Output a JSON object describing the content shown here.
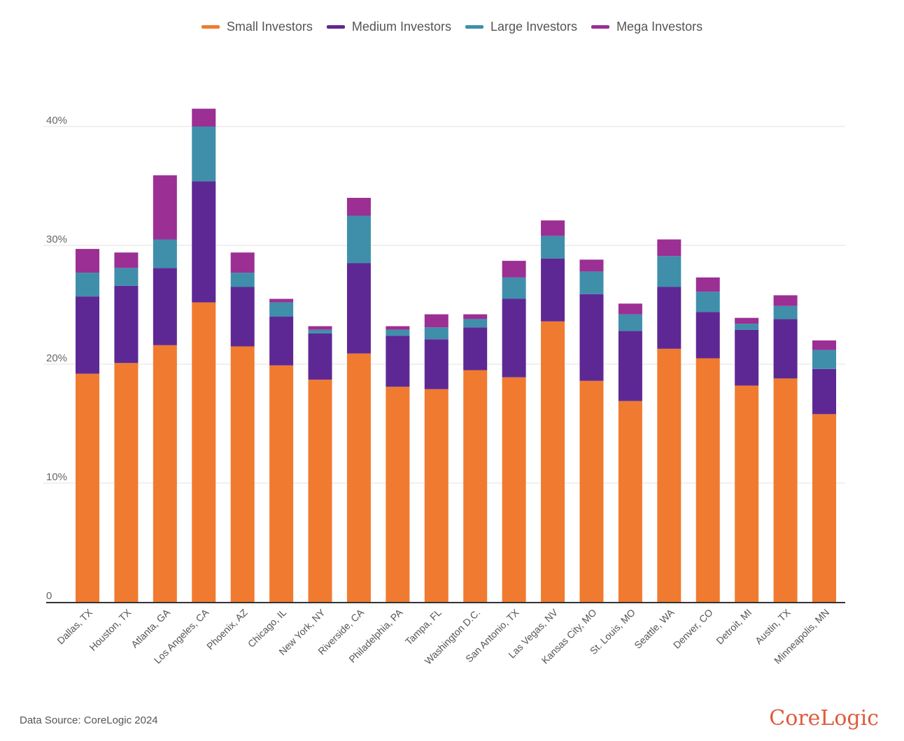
{
  "chart_data": {
    "type": "bar",
    "stacked": true,
    "title": "",
    "xlabel": "",
    "ylabel": "",
    "ylim": [
      0,
      40
    ],
    "yticks": [
      0,
      10,
      20,
      30,
      40
    ],
    "ytick_labels": [
      "0",
      "10%",
      "20%",
      "30%",
      "40%"
    ],
    "grid": true,
    "legend_position": "top-center",
    "categories": [
      "Dallas, TX",
      "Houston, TX",
      "Atlanta, GA",
      "Los Angeles, CA",
      "Phoenix, AZ",
      "Chicago, IL",
      "New York, NY",
      "Riverside, CA",
      "Philadelphia, PA",
      "Tampa, FL",
      "Washington D.C.",
      "San Antonio, TX",
      "Las Vegas, NV",
      "Kansas City, MO",
      "St. Louis, MO",
      "Seattle, WA",
      "Denver, CO",
      "Detroit, MI",
      "Austin, TX",
      "Minneapolis, MN"
    ],
    "series": [
      {
        "name": "Small Investors",
        "color": "#f07b30",
        "values": [
          19.2,
          20.1,
          21.6,
          25.2,
          21.5,
          19.9,
          18.7,
          20.9,
          18.1,
          17.9,
          19.5,
          18.9,
          23.6,
          18.6,
          16.9,
          21.3,
          20.5,
          18.2,
          18.8,
          15.8
        ]
      },
      {
        "name": "Medium Investors",
        "color": "#5e2894",
        "values": [
          6.5,
          6.5,
          6.5,
          10.2,
          5.0,
          4.1,
          3.9,
          7.6,
          4.3,
          4.2,
          3.6,
          6.6,
          5.3,
          7.3,
          5.9,
          5.2,
          3.9,
          4.7,
          5.0,
          3.8
        ]
      },
      {
        "name": "Large Investors",
        "color": "#3f8fab",
        "values": [
          2.0,
          1.5,
          2.4,
          4.6,
          1.2,
          1.2,
          0.3,
          4.0,
          0.5,
          1.0,
          0.7,
          1.8,
          1.9,
          1.9,
          1.4,
          2.6,
          1.7,
          0.5,
          1.1,
          1.6
        ]
      },
      {
        "name": "Mega Investors",
        "color": "#9b2f94",
        "values": [
          2.0,
          1.3,
          5.4,
          1.5,
          1.7,
          0.3,
          0.3,
          1.5,
          0.3,
          1.1,
          0.4,
          1.4,
          1.3,
          1.0,
          0.9,
          1.4,
          1.2,
          0.5,
          0.9,
          0.8
        ]
      }
    ]
  },
  "footer": {
    "source": "Data Source: CoreLogic 2024",
    "brand": "CoreLogic"
  }
}
